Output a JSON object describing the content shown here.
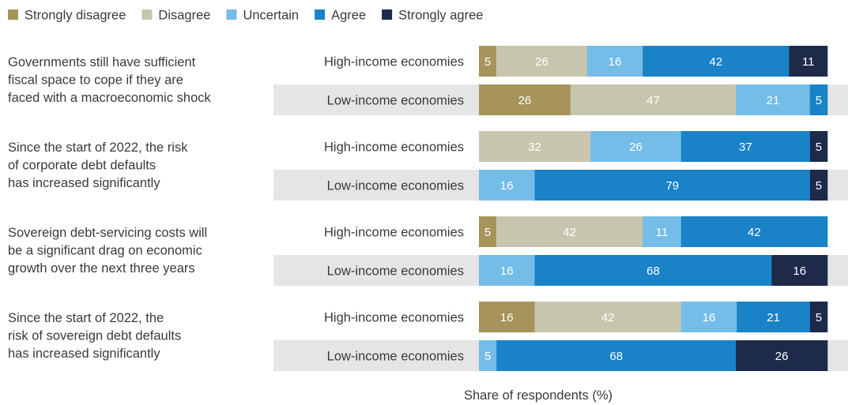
{
  "chart_data": {
    "type": "bar",
    "orientation": "horizontal",
    "stacked": true,
    "xlabel": "Share of respondents (%)",
    "legend_position": "top-left",
    "categories_legend": [
      "Strongly disagree",
      "Disagree",
      "Uncertain",
      "Agree",
      "Strongly agree"
    ],
    "colors": {
      "Strongly disagree": "#a6945a",
      "Disagree": "#c8c5ae",
      "Uncertain": "#74bde8",
      "Agree": "#1a82c6",
      "Strongly agree": "#1d2a4a"
    },
    "label_colors": {
      "Strongly disagree": "#ffffff",
      "Disagree": "#ffffff",
      "Uncertain": "#ffffff",
      "Agree": "#ffffff",
      "Strongly agree": "#ffffff"
    },
    "groups": [
      {
        "question": [
          "Governments still have sufficient",
          "fiscal space to cope if they are",
          "faced with a macroeconomic shock"
        ],
        "rows": [
          {
            "label": "High-income economies",
            "shaded": false,
            "segments": [
              {
                "series": "Strongly disagree",
                "value": 5
              },
              {
                "series": "Disagree",
                "value": 26
              },
              {
                "series": "Uncertain",
                "value": 16
              },
              {
                "series": "Agree",
                "value": 42
              },
              {
                "series": "Strongly agree",
                "value": 11
              }
            ]
          },
          {
            "label": "Low-income economies",
            "shaded": true,
            "segments": [
              {
                "series": "Strongly disagree",
                "value": 26
              },
              {
                "series": "Disagree",
                "value": 47
              },
              {
                "series": "Uncertain",
                "value": 21
              },
              {
                "series": "Agree",
                "value": 5
              }
            ]
          }
        ]
      },
      {
        "question": [
          "Since the start of 2022, the risk",
          "of corporate debt defaults",
          "has increased significantly"
        ],
        "rows": [
          {
            "label": "High-income economies",
            "shaded": false,
            "segments": [
              {
                "series": "Disagree",
                "value": 32
              },
              {
                "series": "Uncertain",
                "value": 26
              },
              {
                "series": "Agree",
                "value": 37
              },
              {
                "series": "Strongly agree",
                "value": 5
              }
            ]
          },
          {
            "label": "Low-income economies",
            "shaded": true,
            "segments": [
              {
                "series": "Uncertain",
                "value": 16
              },
              {
                "series": "Agree",
                "value": 79
              },
              {
                "series": "Strongly agree",
                "value": 5
              }
            ]
          }
        ]
      },
      {
        "question": [
          "Sovereign debt-servicing costs will",
          "be a significant drag on economic",
          "growth over the next three years"
        ],
        "rows": [
          {
            "label": "High-income economies",
            "shaded": false,
            "segments": [
              {
                "series": "Strongly disagree",
                "value": 5
              },
              {
                "series": "Disagree",
                "value": 42
              },
              {
                "series": "Uncertain",
                "value": 11
              },
              {
                "series": "Agree",
                "value": 42
              }
            ]
          },
          {
            "label": "Low-income economies",
            "shaded": true,
            "segments": [
              {
                "series": "Uncertain",
                "value": 16
              },
              {
                "series": "Agree",
                "value": 68
              },
              {
                "series": "Strongly agree",
                "value": 16
              }
            ]
          }
        ]
      },
      {
        "question": [
          "Since the start of 2022, the",
          "risk of sovereign debt defaults",
          "has increased significantly"
        ],
        "rows": [
          {
            "label": "High-income economies",
            "shaded": false,
            "segments": [
              {
                "series": "Strongly disagree",
                "value": 16
              },
              {
                "series": "Disagree",
                "value": 42
              },
              {
                "series": "Uncertain",
                "value": 16
              },
              {
                "series": "Agree",
                "value": 21
              },
              {
                "series": "Strongly agree",
                "value": 5
              }
            ]
          },
          {
            "label": "Low-income economies",
            "shaded": true,
            "segments": [
              {
                "series": "Uncertain",
                "value": 5
              },
              {
                "series": "Agree",
                "value": 68
              },
              {
                "series": "Strongly agree",
                "value": 26
              }
            ]
          }
        ]
      }
    ]
  }
}
